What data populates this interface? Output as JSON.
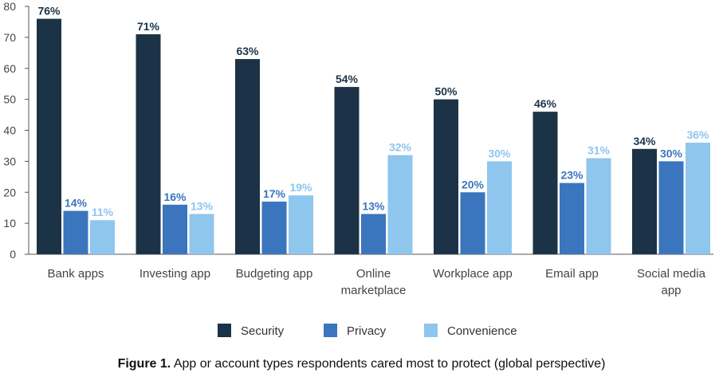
{
  "caption": {
    "label": "Figure 1.",
    "text": "App or account types respondents cared most to protect (global perspective)"
  },
  "chart_data": {
    "type": "bar",
    "categories": [
      [
        "Bank apps"
      ],
      [
        "Investing app"
      ],
      [
        "Budgeting app"
      ],
      [
        "Online",
        "marketplace"
      ],
      [
        "Workplace app"
      ],
      [
        "Email app"
      ],
      [
        "Social media",
        "app"
      ]
    ],
    "series": [
      {
        "name": "Security",
        "color": "#1c3347",
        "label_color": "#1c3347",
        "values": [
          76,
          71,
          63,
          54,
          50,
          46,
          34
        ],
        "labels": [
          "76%",
          "71%",
          "63%",
          "54%",
          "50%",
          "46%",
          "34%"
        ]
      },
      {
        "name": "Privacy",
        "color": "#3b75bd",
        "label_color": "#3b75bd",
        "values": [
          14,
          16,
          17,
          13,
          20,
          23,
          30
        ],
        "labels": [
          "14%",
          "16%",
          "17%",
          "13%",
          "20%",
          "23%",
          "30%"
        ]
      },
      {
        "name": "Convenience",
        "color": "#8ec6ee",
        "label_color": "#8ec6ee",
        "values": [
          11,
          13,
          19,
          32,
          30,
          31,
          36
        ],
        "labels": [
          "11%",
          "13%",
          "19%",
          "32%",
          "30%",
          "31%",
          "36%"
        ]
      }
    ],
    "ylim": [
      0,
      80
    ],
    "yticks": [
      "0",
      "10",
      "20",
      "30",
      "40",
      "50",
      "60",
      "70",
      "80"
    ],
    "axis_color": "#555555",
    "grid": false,
    "legend": "bottom"
  }
}
